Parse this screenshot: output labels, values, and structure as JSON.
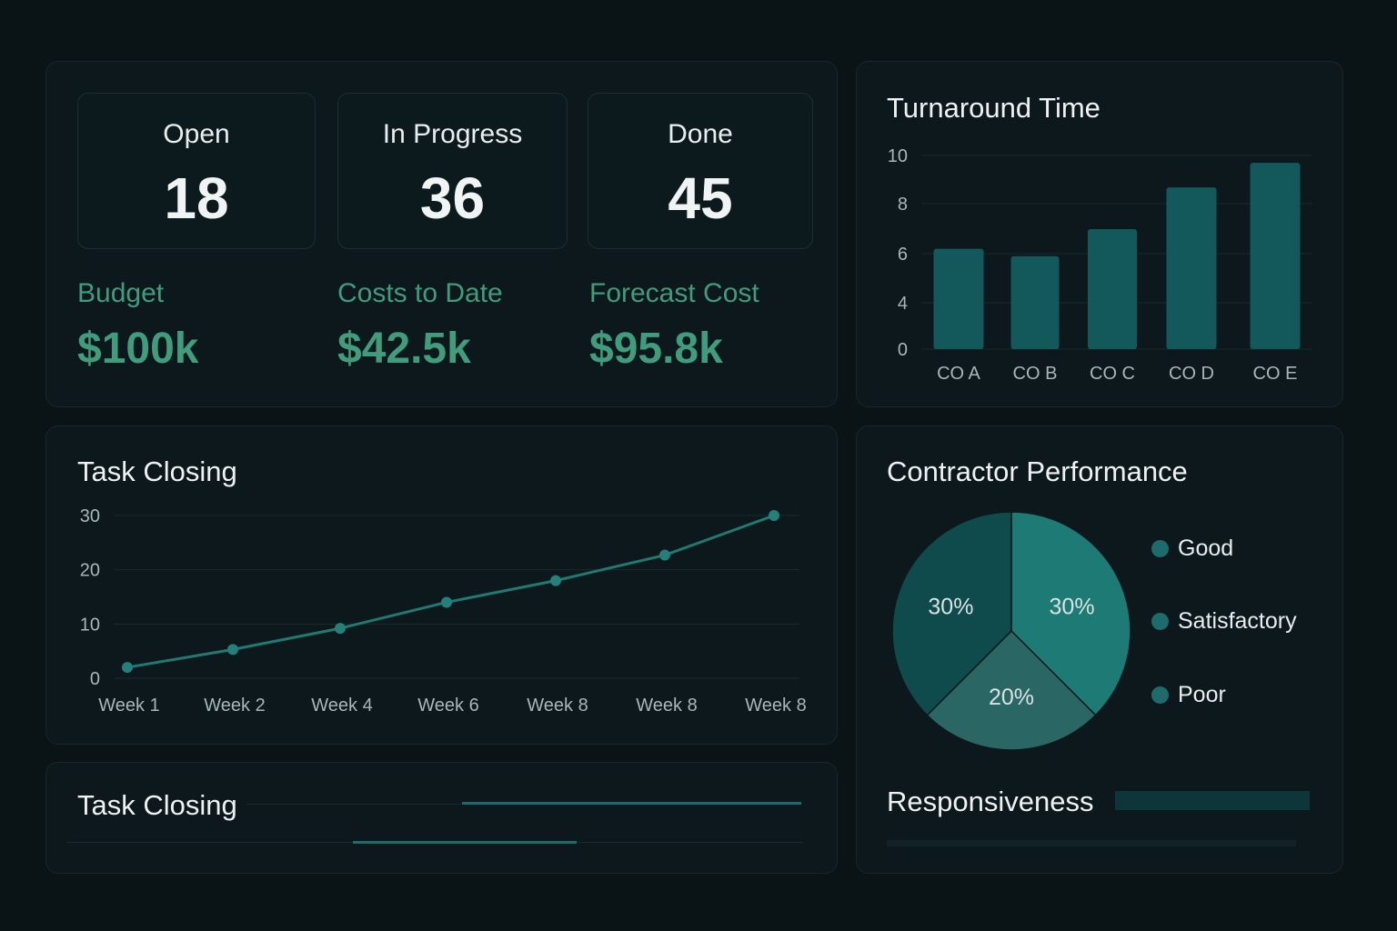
{
  "summary": {
    "open": {
      "label": "Open",
      "value": "18"
    },
    "in_progress": {
      "label": "In Progress",
      "value": "36"
    },
    "done": {
      "label": "Done",
      "value": "45"
    },
    "budget": {
      "label": "Budget",
      "value": "$100k"
    },
    "costs_to_date": {
      "label": "Costs to Date",
      "value": "$42.5k"
    },
    "forecast_cost": {
      "label": "Forecast Cost",
      "value": "$95.8k"
    }
  },
  "colors": {
    "background": "#0a1417",
    "panel": "#0c181b",
    "accent_green": "#3f9c7c",
    "teal": "#1d6b6b"
  },
  "turnaround": {
    "title": "Turnaround Time"
  },
  "task_closing": {
    "title": "Task Closing"
  },
  "task_closing_lower": {
    "title": "Task Closing"
  },
  "contractor": {
    "title": "Contractor Performance"
  },
  "responsiveness": {
    "title": "Responsiveness"
  },
  "chart_data": [
    {
      "type": "bar",
      "title": "Turnaround Time",
      "categories": [
        "CO A",
        "CO B",
        "CO C",
        "CO D",
        "CO E"
      ],
      "values": [
        6.2,
        5.9,
        7.0,
        8.7,
        9.7
      ],
      "y_ticks": [
        "0",
        "4",
        "6",
        "8",
        "10"
      ],
      "grid": true
    },
    {
      "type": "line",
      "title": "Task Closing",
      "x": [
        "Week 1",
        "Week 2",
        "Week 4",
        "Week 6",
        "Week 8",
        "Week 8",
        "Week 8"
      ],
      "values": [
        2,
        5.3,
        9.2,
        14,
        18,
        22.7,
        30
      ],
      "y_ticks": [
        "0",
        "10",
        "20",
        "30"
      ],
      "ylim": [
        0,
        30
      ],
      "grid": true
    },
    {
      "type": "pie",
      "title": "Contractor Performance",
      "legend": [
        "Good",
        "Satisfactory",
        "Poor"
      ],
      "slices": [
        {
          "label": "30%",
          "value": 30,
          "color": "#1e7a75"
        },
        {
          "label": "20%",
          "value": 20,
          "color": "#2a6764"
        },
        {
          "label": "30%",
          "value": 30,
          "color": "#0f4b4d"
        }
      ],
      "legend_position": "right"
    }
  ]
}
